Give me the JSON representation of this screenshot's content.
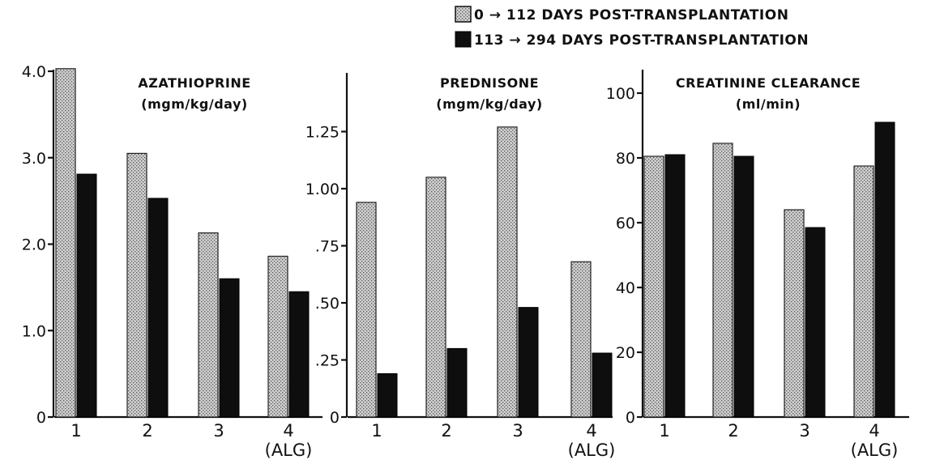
{
  "legend": {
    "entries": [
      {
        "label": "0 → 112 DAYS POST-TRANSPLANTATION",
        "style": "stippled"
      },
      {
        "label": "113 → 294 DAYS POST-TRANSPLANTATION",
        "style": "solid-black"
      }
    ]
  },
  "colors": {
    "solid": "#0e0e0e",
    "stipple_bg": "#cfcfcf",
    "stipple_dot": "#555555"
  },
  "chart_data": [
    {
      "type": "bar",
      "title": "AZATHIOPRINE",
      "subtitle": "(mgm/kg/day)",
      "categories": [
        "1",
        "2",
        "3",
        "4"
      ],
      "category_notes": [
        "",
        "",
        "",
        "(ALG)"
      ],
      "ylim": [
        0,
        4.0
      ],
      "yticks": [
        0,
        1.0,
        2.0,
        3.0,
        4.0
      ],
      "ytick_labels": [
        "0",
        "1.0",
        "2.0",
        "3.0",
        "4.0"
      ],
      "series": [
        {
          "name": "0 → 112 DAYS POST-TRANSPLANTATION",
          "values": [
            4.03,
            3.05,
            2.13,
            1.86
          ]
        },
        {
          "name": "113 → 294 DAYS POST-TRANSPLANTATION",
          "values": [
            2.81,
            2.53,
            1.6,
            1.45
          ]
        }
      ]
    },
    {
      "type": "bar",
      "title": "PREDNISONE",
      "subtitle": "(mgm/kg/day)",
      "categories": [
        "1",
        "2",
        "3",
        "4"
      ],
      "category_notes": [
        "",
        "",
        "",
        "(ALG)"
      ],
      "ylim": [
        0,
        1.5
      ],
      "yticks": [
        0,
        0.25,
        0.5,
        0.75,
        1.0,
        1.25
      ],
      "ytick_labels": [
        "0",
        ".25",
        ".50",
        ".75",
        "1.00",
        "1.25"
      ],
      "series": [
        {
          "name": "0 → 112 DAYS POST-TRANSPLANTATION",
          "values": [
            0.94,
            1.05,
            1.27,
            0.68
          ]
        },
        {
          "name": "113 → 294 DAYS POST-TRANSPLANTATION",
          "values": [
            0.19,
            0.3,
            0.48,
            0.28
          ]
        }
      ]
    },
    {
      "type": "bar",
      "title": "CREATININE CLEARANCE",
      "subtitle": "(ml/min)",
      "categories": [
        "1",
        "2",
        "3",
        "4"
      ],
      "category_notes": [
        "",
        "",
        "",
        "(ALG)"
      ],
      "ylim": [
        0,
        100
      ],
      "yticks": [
        0,
        20,
        40,
        60,
        80,
        100
      ],
      "ytick_labels": [
        "0",
        "20",
        "40",
        "60",
        "80",
        "100"
      ],
      "series": [
        {
          "name": "0 → 112 DAYS POST-TRANSPLANTATION",
          "values": [
            80.5,
            84.5,
            64,
            77.5
          ]
        },
        {
          "name": "113 → 294 DAYS POST-TRANSPLANTATION",
          "values": [
            81,
            80.5,
            58.5,
            91
          ]
        }
      ]
    }
  ]
}
